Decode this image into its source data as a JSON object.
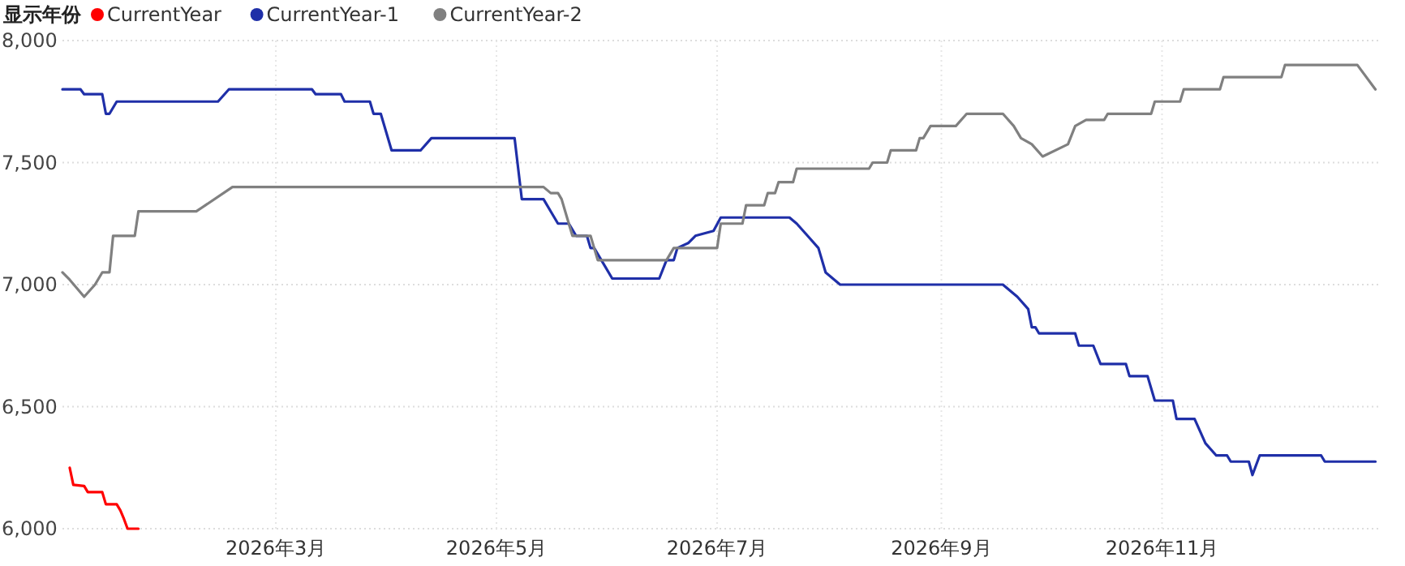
{
  "chart_data": {
    "type": "line",
    "legend_title": "显示年份",
    "legend": "top left",
    "grid": true,
    "line_style": "solid",
    "xlim": [
      "2026-01-01",
      "2026-12-31"
    ],
    "xticks": [
      {
        "value": "2026-03-01",
        "label": "2026年3月"
      },
      {
        "value": "2026-05-01",
        "label": "2026年5月"
      },
      {
        "value": "2026-07-01",
        "label": "2026年7月"
      },
      {
        "value": "2026-09-01",
        "label": "2026年9月"
      },
      {
        "value": "2026-11-01",
        "label": "2026年11月"
      }
    ],
    "ylim": [
      6000,
      8000
    ],
    "yticks": [
      {
        "value": 6000,
        "label": "6,000"
      },
      {
        "value": 6500,
        "label": "6,500"
      },
      {
        "value": 7000,
        "label": "7,000"
      },
      {
        "value": 7500,
        "label": "7,500"
      },
      {
        "value": 8000,
        "label": "8,000"
      }
    ],
    "series": [
      {
        "name": "CurrentYear",
        "color": "#ff0000",
        "x": [
          "2026-01-03",
          "2026-01-04",
          "2026-01-07",
          "2026-01-08",
          "2026-01-12",
          "2026-01-13",
          "2026-01-16",
          "2026-01-17",
          "2026-01-18",
          "2026-01-19",
          "2026-01-22"
        ],
        "values": [
          6250,
          6180,
          6175,
          6150,
          6150,
          6100,
          6100,
          6075,
          6040,
          6000,
          6000
        ]
      },
      {
        "name": "CurrentYear-1",
        "color": "#1f2fa8",
        "x": [
          "2026-01-01",
          "2026-01-06",
          "2026-01-07",
          "2026-01-12",
          "2026-01-13",
          "2026-01-14",
          "2026-01-16",
          "2026-02-13",
          "2026-02-16",
          "2026-03-11",
          "2026-03-12",
          "2026-03-19",
          "2026-03-20",
          "2026-03-27",
          "2026-03-28",
          "2026-03-30",
          "2026-04-02",
          "2026-04-10",
          "2026-04-13",
          "2026-05-06",
          "2026-05-08",
          "2026-05-14",
          "2026-05-16",
          "2026-05-18",
          "2026-05-21",
          "2026-05-23",
          "2026-05-26",
          "2026-05-27",
          "2026-05-28",
          "2026-05-30",
          "2026-06-02",
          "2026-06-15",
          "2026-06-17",
          "2026-06-19",
          "2026-06-20",
          "2026-06-23",
          "2026-06-25",
          "2026-06-30",
          "2026-07-02",
          "2026-07-21",
          "2026-07-23",
          "2026-07-26",
          "2026-07-29",
          "2026-07-31",
          "2026-08-04",
          "2026-09-18",
          "2026-09-22",
          "2026-09-25",
          "2026-09-26",
          "2026-09-27",
          "2026-09-28",
          "2026-10-08",
          "2026-10-09",
          "2026-10-13",
          "2026-10-15",
          "2026-10-22",
          "2026-10-23",
          "2026-10-28",
          "2026-10-30",
          "2026-11-04",
          "2026-11-05",
          "2026-11-10",
          "2026-11-13",
          "2026-11-16",
          "2026-11-19",
          "2026-11-20",
          "2026-11-25",
          "2026-11-26",
          "2026-11-28",
          "2026-12-15",
          "2026-12-16",
          "2026-12-30"
        ],
        "values": [
          7800,
          7800,
          7780,
          7780,
          7700,
          7700,
          7750,
          7750,
          7800,
          7800,
          7780,
          7780,
          7750,
          7750,
          7700,
          7700,
          7550,
          7550,
          7600,
          7600,
          7350,
          7350,
          7300,
          7250,
          7250,
          7200,
          7200,
          7150,
          7150,
          7100,
          7025,
          7025,
          7100,
          7100,
          7150,
          7170,
          7200,
          7220,
          7275,
          7275,
          7250,
          7200,
          7150,
          7050,
          7000,
          7000,
          6950,
          6900,
          6825,
          6825,
          6800,
          6800,
          6750,
          6750,
          6675,
          6675,
          6625,
          6625,
          6525,
          6525,
          6450,
          6450,
          6350,
          6300,
          6300,
          6275,
          6275,
          6220,
          6300,
          6300,
          6275,
          6275
        ]
      },
      {
        "name": "CurrentYear-2",
        "color": "#808080",
        "x": [
          "2026-01-01",
          "2026-01-03",
          "2026-01-07",
          "2026-01-10",
          "2026-01-12",
          "2026-01-14",
          "2026-01-15",
          "2026-01-21",
          "2026-01-22",
          "2026-02-07",
          "2026-02-17",
          "2026-05-14",
          "2026-05-16",
          "2026-05-18",
          "2026-05-19",
          "2026-05-20",
          "2026-05-22",
          "2026-05-27",
          "2026-05-28",
          "2026-05-29",
          "2026-06-17",
          "2026-06-19",
          "2026-07-01",
          "2026-07-02",
          "2026-07-08",
          "2026-07-09",
          "2026-07-14",
          "2026-07-15",
          "2026-07-17",
          "2026-07-18",
          "2026-07-22",
          "2026-07-23",
          "2026-08-12",
          "2026-08-13",
          "2026-08-17",
          "2026-08-18",
          "2026-08-25",
          "2026-08-26",
          "2026-08-27",
          "2026-08-29",
          "2026-09-05",
          "2026-09-08",
          "2026-09-18",
          "2026-09-21",
          "2026-09-23",
          "2026-09-26",
          "2026-09-29",
          "2026-10-06",
          "2026-10-08",
          "2026-10-11",
          "2026-10-16",
          "2026-10-17",
          "2026-10-29",
          "2026-10-30",
          "2026-11-06",
          "2026-11-07",
          "2026-11-17",
          "2026-11-18",
          "2026-12-04",
          "2026-12-05",
          "2026-12-25",
          "2026-12-30"
        ],
        "values": [
          7050,
          7020,
          6950,
          7000,
          7050,
          7050,
          7200,
          7200,
          7300,
          7300,
          7400,
          7400,
          7375,
          7375,
          7350,
          7300,
          7200,
          7200,
          7150,
          7100,
          7100,
          7150,
          7150,
          7250,
          7250,
          7325,
          7325,
          7375,
          7375,
          7420,
          7420,
          7475,
          7475,
          7500,
          7500,
          7550,
          7550,
          7600,
          7600,
          7650,
          7650,
          7700,
          7700,
          7650,
          7600,
          7575,
          7525,
          7575,
          7650,
          7675,
          7675,
          7700,
          7700,
          7750,
          7750,
          7800,
          7800,
          7850,
          7850,
          7900,
          7900,
          7800
        ]
      }
    ]
  }
}
